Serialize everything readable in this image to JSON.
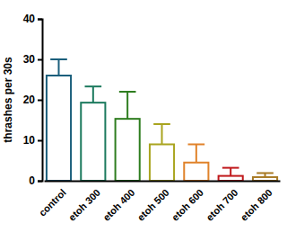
{
  "chart_data": {
    "type": "bar",
    "y_label": "thrashes per 30s",
    "categories": [
      "control",
      "etoh 300",
      "etoh 400",
      "etoh 500",
      "etoh 600",
      "etoh 700",
      "etoh 800"
    ],
    "values": [
      26,
      19.3,
      15.3,
      9,
      4.5,
      1.2,
      0.9
    ],
    "errors": [
      4,
      4,
      6.7,
      5,
      4.5,
      2,
      1
    ],
    "colors": [
      "#1b5f7c",
      "#1c7a5e",
      "#2e7d1f",
      "#a9a41f",
      "#e0822a",
      "#c0191c",
      "#a87a24"
    ],
    "ylim": [
      0,
      40
    ],
    "yticks": [
      0,
      10,
      20,
      30,
      40
    ]
  }
}
